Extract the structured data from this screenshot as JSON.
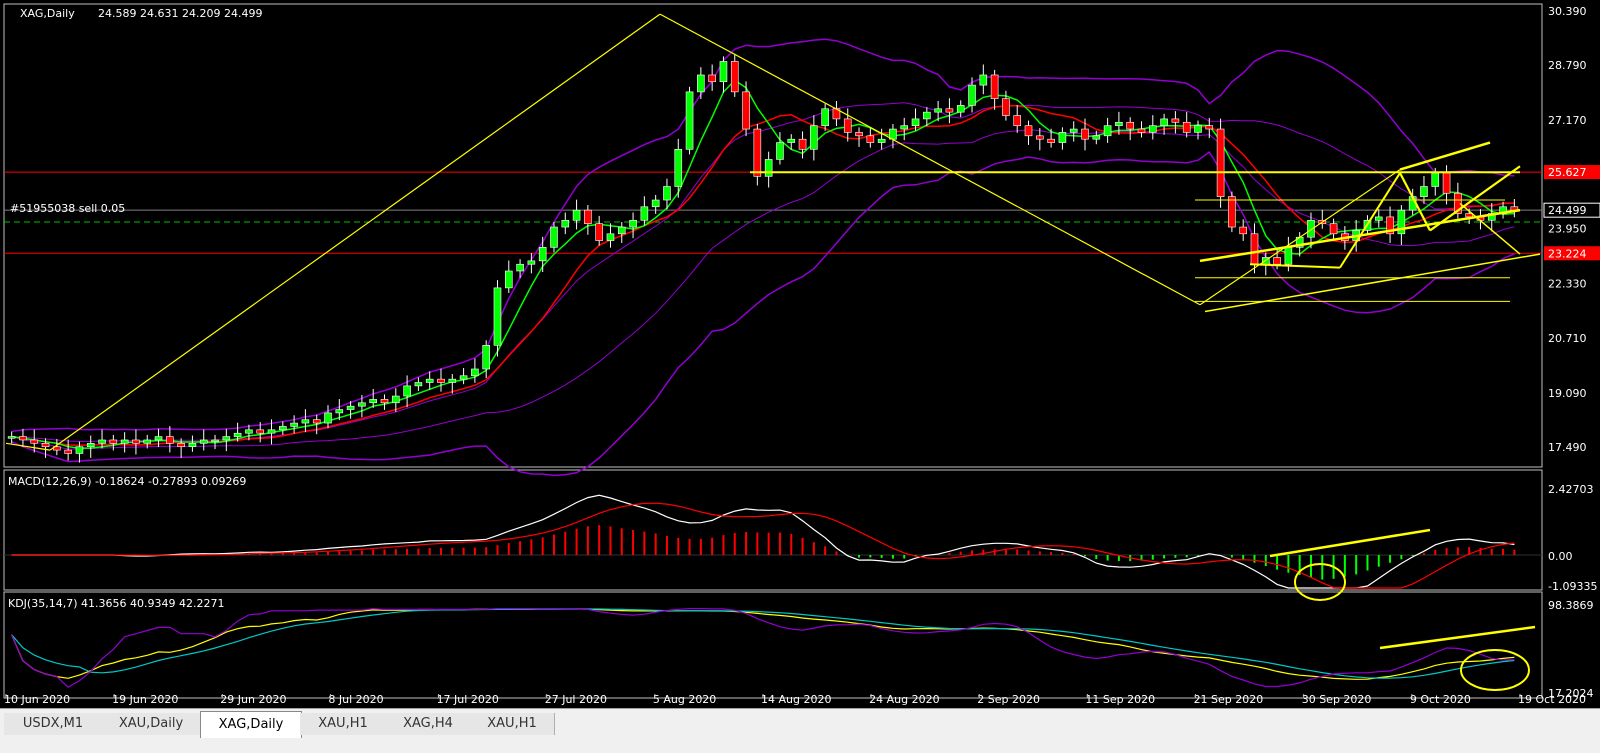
{
  "header": {
    "symbol": "XAG,Daily",
    "ohlc": "24.589 24.631 24.209 24.499",
    "order_label": "#51955038 sell 0.05"
  },
  "price_axis": [
    "30.390",
    "28.790",
    "27.170",
    "25.627",
    "24.499",
    "23.950",
    "23.224",
    "22.330",
    "20.710",
    "19.090",
    "17.490"
  ],
  "macd": {
    "label": "MACD(12,26,9) -0.18624 -0.27893 0.09269",
    "axis": [
      "2.42703",
      "0.00",
      "-1.09335"
    ]
  },
  "kdj": {
    "label": "KDJ(35,14,7) 41.3656 40.9349 42.2271",
    "axis": [
      "98.3869",
      "17.2024"
    ]
  },
  "dates": [
    "10 Jun 2020",
    "19 Jun 2020",
    "29 Jun 2020",
    "8 Jul 2020",
    "17 Jul 2020",
    "27 Jul 2020",
    "5 Aug 2020",
    "14 Aug 2020",
    "24 Aug 2020",
    "2 Sep 2020",
    "11 Sep 2020",
    "21 Sep 2020",
    "30 Sep 2020",
    "9 Oct 2020",
    "19 Oct 2020"
  ],
  "tabs": [
    {
      "label": "USDX,M1",
      "active": false
    },
    {
      "label": "XAU,Daily",
      "active": false
    },
    {
      "label": "XAG,Daily",
      "active": true
    },
    {
      "label": "XAU,H1",
      "active": false
    },
    {
      "label": "XAG,H4",
      "active": false
    },
    {
      "label": "XAU,H1",
      "active": false
    }
  ],
  "colors": {
    "bull": "#00ff00",
    "bear": "#ff0000",
    "bands": "#9400d3",
    "ma_fast": "#ff0000",
    "ma_slow": "#00ff00",
    "annot": "#ffff00"
  },
  "chart_data": {
    "type": "candlestick",
    "symbol": "XAG",
    "timeframe": "Daily",
    "y_range": [
      16.9,
      30.6
    ],
    "horizontal_levels": [
      25.627,
      24.499,
      23.224
    ],
    "closes": [
      17.8,
      17.7,
      17.6,
      17.5,
      17.4,
      17.3,
      17.5,
      17.6,
      17.7,
      17.6,
      17.7,
      17.6,
      17.7,
      17.8,
      17.6,
      17.5,
      17.6,
      17.7,
      17.7,
      17.8,
      17.9,
      18.0,
      17.9,
      18.0,
      18.1,
      18.2,
      18.3,
      18.2,
      18.5,
      18.6,
      18.7,
      18.8,
      18.9,
      18.8,
      19.0,
      19.3,
      19.4,
      19.5,
      19.4,
      19.5,
      19.6,
      19.8,
      20.5,
      22.2,
      22.7,
      22.9,
      23.0,
      23.4,
      24.0,
      24.2,
      24.5,
      24.1,
      23.6,
      23.8,
      24.0,
      24.2,
      24.6,
      24.8,
      25.2,
      26.3,
      28.0,
      28.5,
      28.3,
      28.9,
      28.0,
      26.9,
      25.5,
      26.0,
      26.5,
      26.6,
      26.3,
      27.0,
      27.5,
      27.2,
      26.8,
      26.7,
      26.5,
      26.6,
      26.9,
      27.0,
      27.2,
      27.4,
      27.5,
      27.4,
      27.6,
      28.2,
      28.5,
      27.8,
      27.3,
      27.0,
      26.7,
      26.6,
      26.5,
      26.8,
      26.9,
      26.6,
      26.7,
      27.0,
      27.1,
      26.9,
      26.8,
      27.0,
      27.2,
      27.1,
      26.8,
      27.0,
      26.9,
      24.9,
      24.0,
      23.8,
      22.9,
      23.1,
      22.9,
      23.4,
      23.7,
      24.2,
      24.1,
      23.8,
      23.6,
      23.9,
      24.2,
      24.3,
      23.8,
      24.5,
      24.9,
      25.2,
      25.6,
      25.0,
      24.4,
      24.3,
      24.2,
      24.4,
      24.6,
      24.5
    ],
    "macd": {
      "histogram": 0.09269,
      "signal": -0.27893,
      "main": -0.18624
    },
    "kdj": {
      "k": 41.3656,
      "d": 40.9349,
      "j": 42.2271
    }
  }
}
